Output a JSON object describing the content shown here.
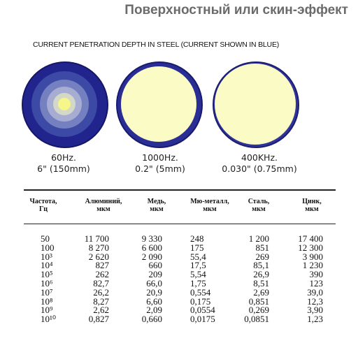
{
  "slide": {
    "title": "Поверхностный или скин-эффект"
  },
  "figure": {
    "caption": "CURRENT PENETRATION DEPTH IN STEEL (CURRENT SHOWN IN BLUE)",
    "circles": [
      {
        "frequency": "60Hz.",
        "depth": "6\" (150mm)"
      },
      {
        "frequency": "1000Hz.",
        "depth": "0.2\" (5mm)"
      },
      {
        "frequency": "400KHz.",
        "depth": "0.030\" (0.75mm)"
      }
    ],
    "colors": {
      "current": "#1c1f8c",
      "core": "#fbfbc6"
    }
  },
  "table": {
    "headers": [
      "Частота,\nГц",
      "Алюминий,\nмкм",
      "Медь,\nмкм",
      "Мю-металл,\nмкм",
      "Сталь,\nмкм",
      "Цинк,\nмкм"
    ],
    "rows": [
      [
        "50",
        "11 700",
        "9 330",
        "248",
        "1 200",
        "17 400"
      ],
      [
        "100",
        "8 270",
        "6 600",
        "175",
        "851",
        "12 300"
      ],
      [
        "10³",
        "2 620",
        "2 090",
        "55,4",
        "269",
        "3 900"
      ],
      [
        "10⁴",
        "827",
        "660",
        "17,5",
        "85,1",
        "1 230"
      ],
      [
        "10⁵",
        "262",
        "209",
        "5,54",
        "26,9",
        "390"
      ],
      [
        "10⁶",
        "82,7",
        "66,0",
        "1,75",
        "8,51",
        "123"
      ],
      [
        "10⁷",
        "26,2",
        "20,9",
        "0,554",
        "2,69",
        "39,0"
      ],
      [
        "10⁸",
        "8,27",
        "6,60",
        "0,175",
        "0,851",
        "12,3"
      ],
      [
        "10⁹",
        "2,62",
        "2,09",
        "0,0554",
        "0,269",
        "3,90"
      ],
      [
        "10¹⁰",
        "0,827",
        "0,660",
        "0,0175",
        "0,0851",
        "1,23"
      ]
    ]
  }
}
